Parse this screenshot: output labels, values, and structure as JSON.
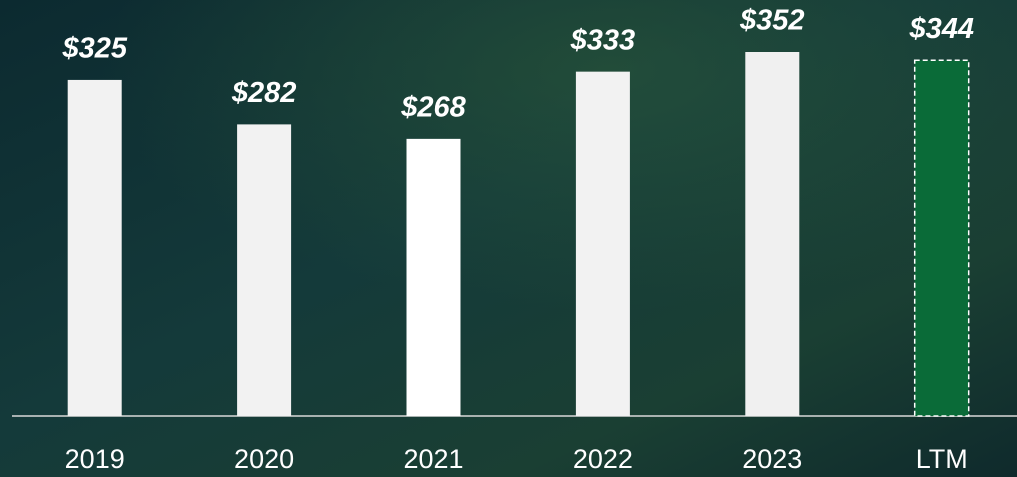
{
  "chart_data": {
    "type": "bar",
    "categories": [
      "2019",
      "2020",
      "2021",
      "2022",
      "2023",
      "LTM"
    ],
    "values": [
      325,
      282,
      268,
      333,
      352,
      344
    ],
    "value_labels": [
      "$325",
      "$282",
      "$268",
      "$333",
      "$352",
      "$344"
    ],
    "colors": [
      "#f2f2f2",
      "#f2f2f2",
      "#ffffff",
      "#f2f2f2",
      "#f0f0f0",
      "#0a6b38"
    ],
    "dashed": [
      false,
      false,
      false,
      false,
      false,
      true
    ]
  }
}
